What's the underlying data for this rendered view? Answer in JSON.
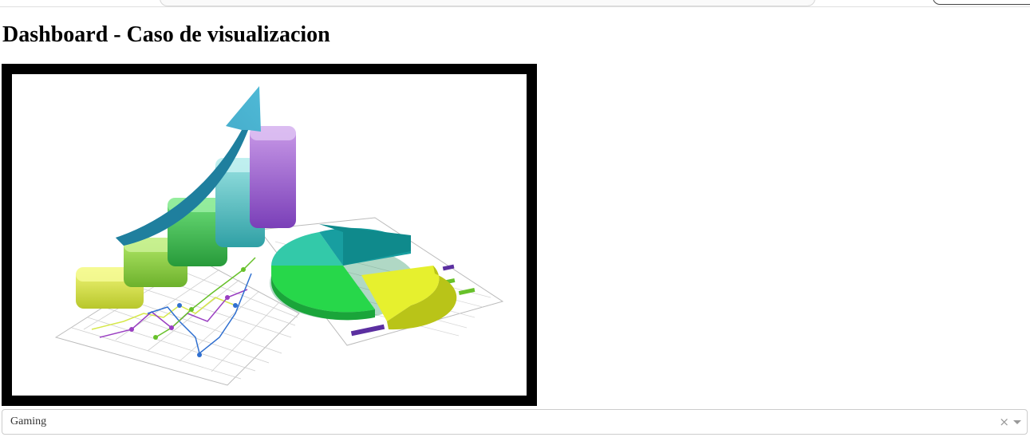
{
  "page": {
    "title": "Dashboard - Caso de visualizacion"
  },
  "hero_image": {
    "description_icon": "charts-illustration-icon"
  },
  "filter_dropdown": {
    "selected_value": "Gaming",
    "clear_glyph": "×"
  },
  "colors": {
    "frame": "#000000",
    "arrow": "#2ea0c0",
    "bar_yellow": "#d8e84a",
    "bar_lightgreen": "#8fd444",
    "bar_green": "#3cc45a",
    "bar_teal": "#55c4c8",
    "bar_purple": "#a46ad8",
    "pie_teal": "#1aa7a4",
    "pie_green": "#28d84a",
    "pie_yellow": "#e8f032"
  }
}
